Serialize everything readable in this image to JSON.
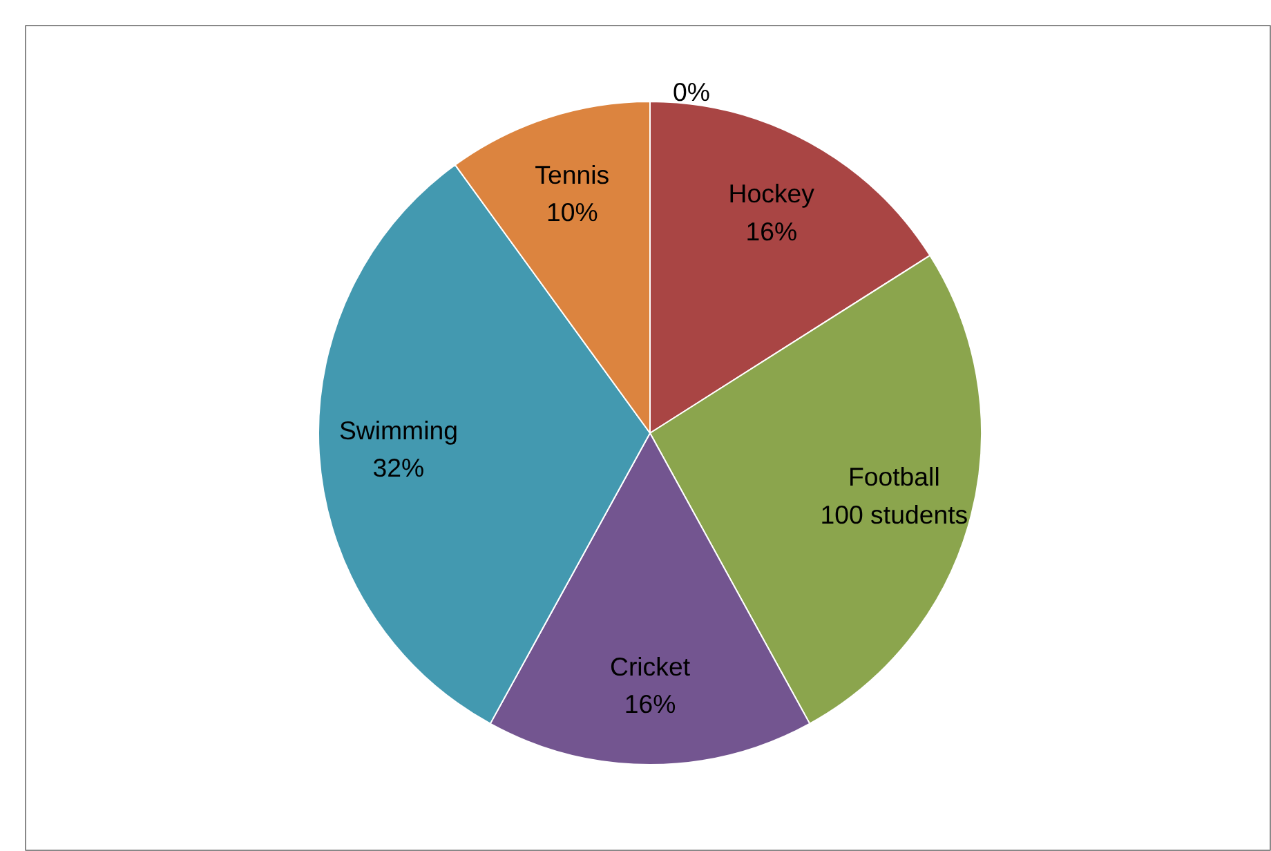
{
  "chart_data": {
    "type": "pie",
    "categories": [
      "Hockey",
      "Football",
      "Cricket",
      "Swimming",
      "Tennis",
      null
    ],
    "values": [
      16,
      26,
      16,
      32,
      10,
      0
    ],
    "colors": [
      "#a94544",
      "#8ba54d",
      "#735590",
      "#4399b0",
      "#dc843f",
      "#4f81bd"
    ],
    "value_labels": [
      "16%",
      null,
      "16%",
      "32%",
      "10%",
      "0%"
    ],
    "annotations": [
      {
        "text": "100 students",
        "x": "Football"
      }
    ],
    "legend": false
  }
}
